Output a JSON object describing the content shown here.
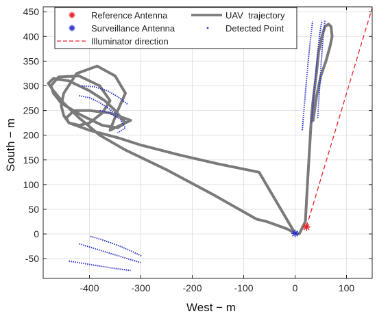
{
  "chart_data": {
    "type": "line",
    "xlabel": "West − m",
    "ylabel": "South − m",
    "xlim": [
      -490,
      150
    ],
    "ylim": [
      -90,
      460
    ],
    "xticks": [
      -400,
      -300,
      -200,
      -100,
      0,
      100
    ],
    "xtick_labels": [
      "-400",
      "-300",
      "-200",
      "-100",
      "0",
      "100"
    ],
    "yticks": [
      -50,
      0,
      50,
      100,
      150,
      200,
      250,
      300,
      350,
      400,
      450
    ],
    "ytick_labels": [
      "-50",
      "0",
      "50",
      "100",
      "150",
      "200",
      "250",
      "300",
      "350",
      "400",
      "450"
    ],
    "grid": true,
    "legend_position": "top",
    "legend": [
      {
        "label": "Reference Antenna",
        "marker": "*",
        "color": "#e8202a"
      },
      {
        "label": "Surveillance Antenna",
        "marker": "*",
        "color": "#2a33c9"
      },
      {
        "label": "Illuminator direction",
        "marker": "dashed-line",
        "color": "#e8202a"
      },
      {
        "label": "UAV  trajectory",
        "marker": "line",
        "color": "#7a7a7a"
      },
      {
        "label": "Detected Point",
        "marker": "dot",
        "color": "#2a33c9"
      }
    ],
    "reference_antenna": {
      "x": 22,
      "y": 14
    },
    "surveillance_antenna": {
      "x": 0,
      "y": 1
    },
    "illuminator_direction": {
      "x": [
        22,
        150
      ],
      "y": [
        14,
        458
      ]
    },
    "uav_trajectory": {
      "x": [
        0,
        -15,
        -55,
        -75,
        -160,
        -250,
        -330,
        -380,
        -420,
        -450,
        -470,
        -480,
        -470,
        -440,
        -400,
        -370,
        -350,
        -330,
        -345,
        -375,
        -415,
        -455,
        -470,
        -475,
        -460,
        -420,
        -380,
        -360,
        -375,
        -400,
        -420,
        -440,
        -450,
        -455,
        -450,
        -425,
        -385,
        -350,
        -330,
        -345,
        -360,
        -340,
        -320,
        -360,
        -400,
        -430,
        -445,
        -440,
        -400,
        -345,
        -300,
        -225,
        -150,
        -70,
        0,
        8,
        20,
        24,
        28,
        32,
        36,
        42,
        46,
        52,
        58,
        65,
        70,
        72,
        68,
        60,
        50,
        42,
        35
      ],
      "y": [
        1,
        10,
        25,
        30,
        80,
        130,
        170,
        200,
        235,
        265,
        290,
        305,
        315,
        310,
        290,
        270,
        250,
        225,
        215,
        220,
        240,
        265,
        285,
        300,
        318,
        320,
        300,
        270,
        245,
        225,
        220,
        225,
        240,
        260,
        285,
        325,
        340,
        320,
        285,
        250,
        210,
        220,
        230,
        245,
        250,
        250,
        235,
        225,
        210,
        195,
        180,
        160,
        142,
        125,
        1,
        0,
        25,
        100,
        170,
        240,
        280,
        330,
        370,
        400,
        420,
        425,
        420,
        400,
        380,
        350,
        320,
        280,
        230
      ]
    },
    "detected_points": [
      {
        "x": [
          -380,
          -360,
          -340,
          -330,
          -345
        ],
        "y": [
          250,
          245,
          232,
          215,
          205
        ]
      },
      {
        "x": [
          -420,
          -400,
          -380,
          -360,
          -345
        ],
        "y": [
          280,
          276,
          266,
          252,
          240
        ]
      },
      {
        "x": [
          -415,
          -390,
          -365,
          -345,
          -325
        ],
        "y": [
          300,
          298,
          290,
          278,
          262
        ]
      },
      {
        "x": [
          -398,
          -378,
          -358,
          -338,
          -318,
          -298
        ],
        "y": [
          -5,
          -11,
          -18,
          -26,
          -35,
          -45
        ]
      },
      {
        "x": [
          -420,
          -395,
          -370,
          -345,
          -320,
          -300
        ],
        "y": [
          -20,
          -28,
          -36,
          -44,
          -52,
          -58
        ]
      },
      {
        "x": [
          -440,
          -410,
          -380,
          -350,
          -320
        ],
        "y": [
          -55,
          -60,
          -65,
          -70,
          -74
        ]
      },
      {
        "x": [
          14,
          18,
          22,
          26,
          30,
          34
        ],
        "y": [
          210,
          260,
          310,
          355,
          395,
          430
        ]
      },
      {
        "x": [
          32,
          36,
          40,
          44,
          48,
          52
        ],
        "y": [
          225,
          275,
          325,
          370,
          405,
          432
        ]
      },
      {
        "x": [
          44,
          47,
          50,
          53,
          56,
          58
        ],
        "y": [
          235,
          285,
          335,
          380,
          410,
          432
        ]
      }
    ]
  }
}
